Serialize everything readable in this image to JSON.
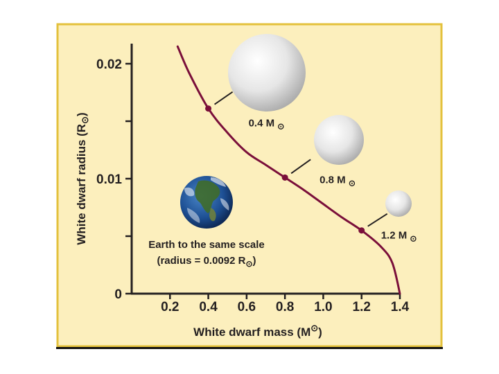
{
  "chart_data": {
    "type": "line",
    "title": "",
    "xlabel": "White dwarf mass (M",
    "xlabel_symbol": "⊙",
    "xlabel_end": ")",
    "ylabel": "White dwarf radius (R",
    "ylabel_symbol": "⊙",
    "ylabel_end": ")",
    "xlim": [
      0,
      1.4
    ],
    "ylim": [
      0,
      0.02
    ],
    "x_ticks": [
      "0.2",
      "0.4",
      "0.6",
      "0.8",
      "1.0",
      "1.2",
      "1.4"
    ],
    "y_ticks": [
      "0",
      "0.01",
      "0.02"
    ],
    "y_minor_ticks": [
      0.005,
      0.015
    ],
    "grid": false,
    "series": [
      {
        "color": "#7a0f3a",
        "x": [
          0.24,
          0.3,
          0.4,
          0.5,
          0.6,
          0.7,
          0.8,
          0.9,
          1.0,
          1.1,
          1.2,
          1.3,
          1.36,
          1.4
        ],
        "y": [
          0.0215,
          0.0192,
          0.0161,
          0.014,
          0.0123,
          0.0112,
          0.0101,
          0.009,
          0.0078,
          0.0066,
          0.0055,
          0.0041,
          0.0027,
          0.0
        ]
      }
    ],
    "marked_points": [
      {
        "x": 0.4,
        "y": 0.0161,
        "label": "0.4 M",
        "symbol": "⊙"
      },
      {
        "x": 0.8,
        "y": 0.0101,
        "label": "0.8 M",
        "symbol": "⊙"
      },
      {
        "x": 1.2,
        "y": 0.0055,
        "label": "1.2 M",
        "symbol": "⊙"
      }
    ],
    "annotation": {
      "line1": "Earth to the same scale",
      "line2_pre": "(radius = 0.0092 R",
      "line2_symbol": "⊙",
      "line2_post": ")"
    },
    "colors": {
      "panel_bg": "#fcefbd",
      "panel_border": "#e3c13c",
      "curve": "#7a0f3a",
      "axis": "#231f20",
      "bottom_bar": "#111111"
    }
  }
}
